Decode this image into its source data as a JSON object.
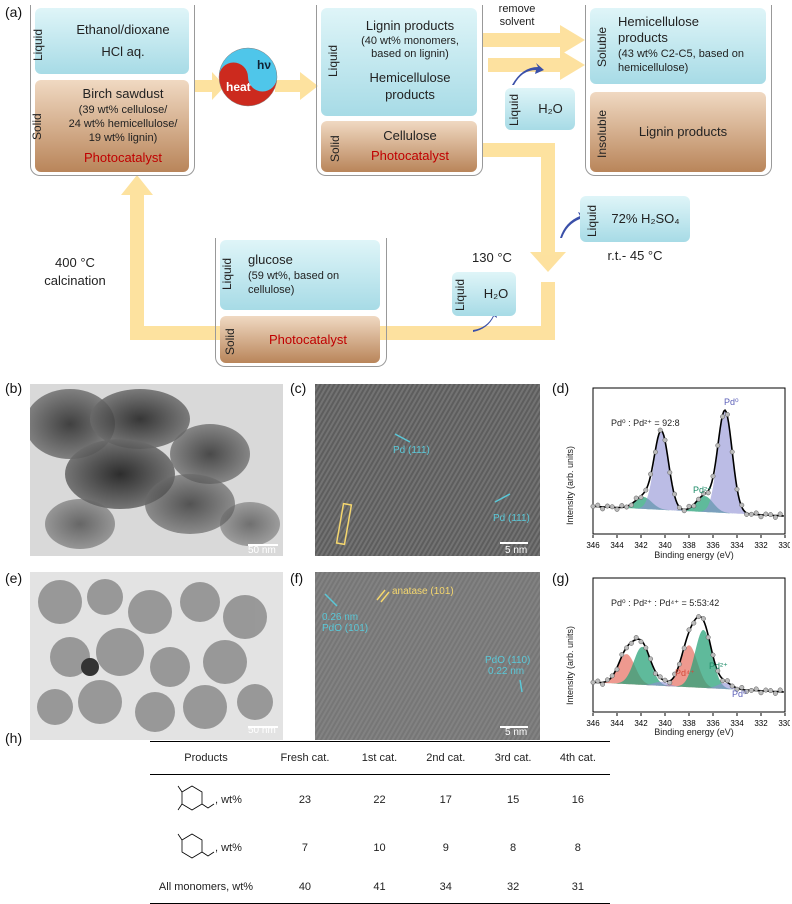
{
  "labels": {
    "a": "(a)",
    "b": "(b)",
    "c": "(c)",
    "d": "(d)",
    "e": "(e)",
    "f": "(f)",
    "g": "(g)",
    "h": "(h)"
  },
  "scheme": {
    "b1_liquid_title": "Liquid",
    "b1_liquid_1": "Ethanol/dioxane",
    "b1_liquid_2": "HCl aq.",
    "b1_solid_title": "Solid",
    "b1_solid_1": "Birch sawdust",
    "b1_solid_2": "(39 wt% cellulose/",
    "b1_solid_3": "24 wt% hemicellulose/",
    "b1_solid_4": "19 wt% lignin)",
    "b1_solid_5": "Photocatalyst",
    "hv": "hν",
    "heat": "heat",
    "b2_liquid_title": "Liquid",
    "b2_liquid_1": "Lignin products",
    "b2_liquid_2": "(40 wt% monomers,",
    "b2_liquid_3": "based on lignin)",
    "b2_liquid_4": "Hemicellulose",
    "b2_liquid_5": "products",
    "b2_solid_title": "Solid",
    "b2_solid_1": "Cellulose",
    "b2_solid_2": "Photocatalyst",
    "remove_solvent_1": "remove",
    "remove_solvent_2": "solvent",
    "water1_title": "Liquid",
    "water1": "H₂O",
    "b3_top_title": "Soluble",
    "b3_top_1": "Hemicellulose",
    "b3_top_2": "products",
    "b3_top_3": "(43 wt% C2-C5, based on",
    "b3_top_4": "hemicellulose)",
    "b3_bottom_title": "Insoluble",
    "b3_bottom_1": "Lignin products",
    "acid_title": "Liquid",
    "acid": "72% H₂SO₄",
    "acid_temp": "r.t.- 45 °C",
    "temp130": "130 °C",
    "water2_title": "Liquid",
    "water2": "H₂O",
    "b4_liquid_title": "Liquid",
    "b4_liquid_1": "glucose",
    "b4_liquid_2": "(59 wt%, based on",
    "b4_liquid_3": "cellulose)",
    "b4_solid_title": "Solid",
    "b4_solid_1": "Photocatalyst",
    "calc_1": "400 °C",
    "calc_2": "calcination"
  },
  "micrographs": {
    "b_scale": "50 nm",
    "c_scale": "5 nm",
    "e_scale": "50 nm",
    "f_scale": "5 nm",
    "c_ann1": "Pd (111)",
    "c_ann2": "Pd (111)",
    "f_ann1": "anatase (101)",
    "f_ann2": "0.26 nm",
    "f_ann3": "PdO (101)",
    "f_ann4": "PdO (110)",
    "f_ann5": "0.22 nm"
  },
  "xps": {
    "ylabel": "Intensity (arb. units)",
    "xlabel": "Binding energy (eV)",
    "ticks": [
      "346",
      "344",
      "342",
      "340",
      "338",
      "336",
      "334",
      "332",
      "330"
    ],
    "d_ratio": "Pd⁰ : Pd²⁺ = 92:8",
    "d_pd0": "Pd⁰",
    "d_pd2": "Pd²⁺",
    "g_ratio": "Pd⁰ : Pd²⁺ : Pd⁴⁺ = 5:53:42",
    "g_pd4": "Pd⁴⁺",
    "g_pd2": "Pd²⁺",
    "g_pd0": "Pd⁰"
  },
  "table": {
    "headers": [
      "Products",
      "Fresh cat.",
      "1st cat.",
      "2nd cat.",
      "3rd cat.",
      "4th cat."
    ],
    "row1_label": ", wt%",
    "row1": [
      "23",
      "22",
      "17",
      "15",
      "16"
    ],
    "row2_label": ", wt%",
    "row2": [
      "7",
      "10",
      "9",
      "8",
      "8"
    ],
    "row3_label": "All monomers, wt%",
    "row3": [
      "40",
      "41",
      "34",
      "32",
      "31"
    ]
  },
  "chart_data": [
    {
      "type": "line",
      "title": "",
      "xlabel": "Binding energy (eV)",
      "ylabel": "Intensity (arb. units)",
      "xlim": [
        346,
        330
      ],
      "series": [
        {
          "name": "Pd⁰",
          "peaks": [
            340.3,
            335.0
          ]
        },
        {
          "name": "Pd²⁺",
          "peaks": [
            341.8,
            336.7
          ]
        }
      ]
    },
    {
      "type": "line",
      "title": "",
      "xlabel": "Binding energy (eV)",
      "ylabel": "Intensity (arb. units)",
      "xlim": [
        346,
        330
      ],
      "series": [
        {
          "name": "Pd⁴⁺",
          "peaks": [
            343.2,
            338.0
          ]
        },
        {
          "name": "Pd²⁺",
          "peaks": [
            341.9,
            336.8
          ]
        },
        {
          "name": "Pd⁰",
          "peaks": [
            340.3,
            335.0
          ]
        }
      ]
    }
  ]
}
